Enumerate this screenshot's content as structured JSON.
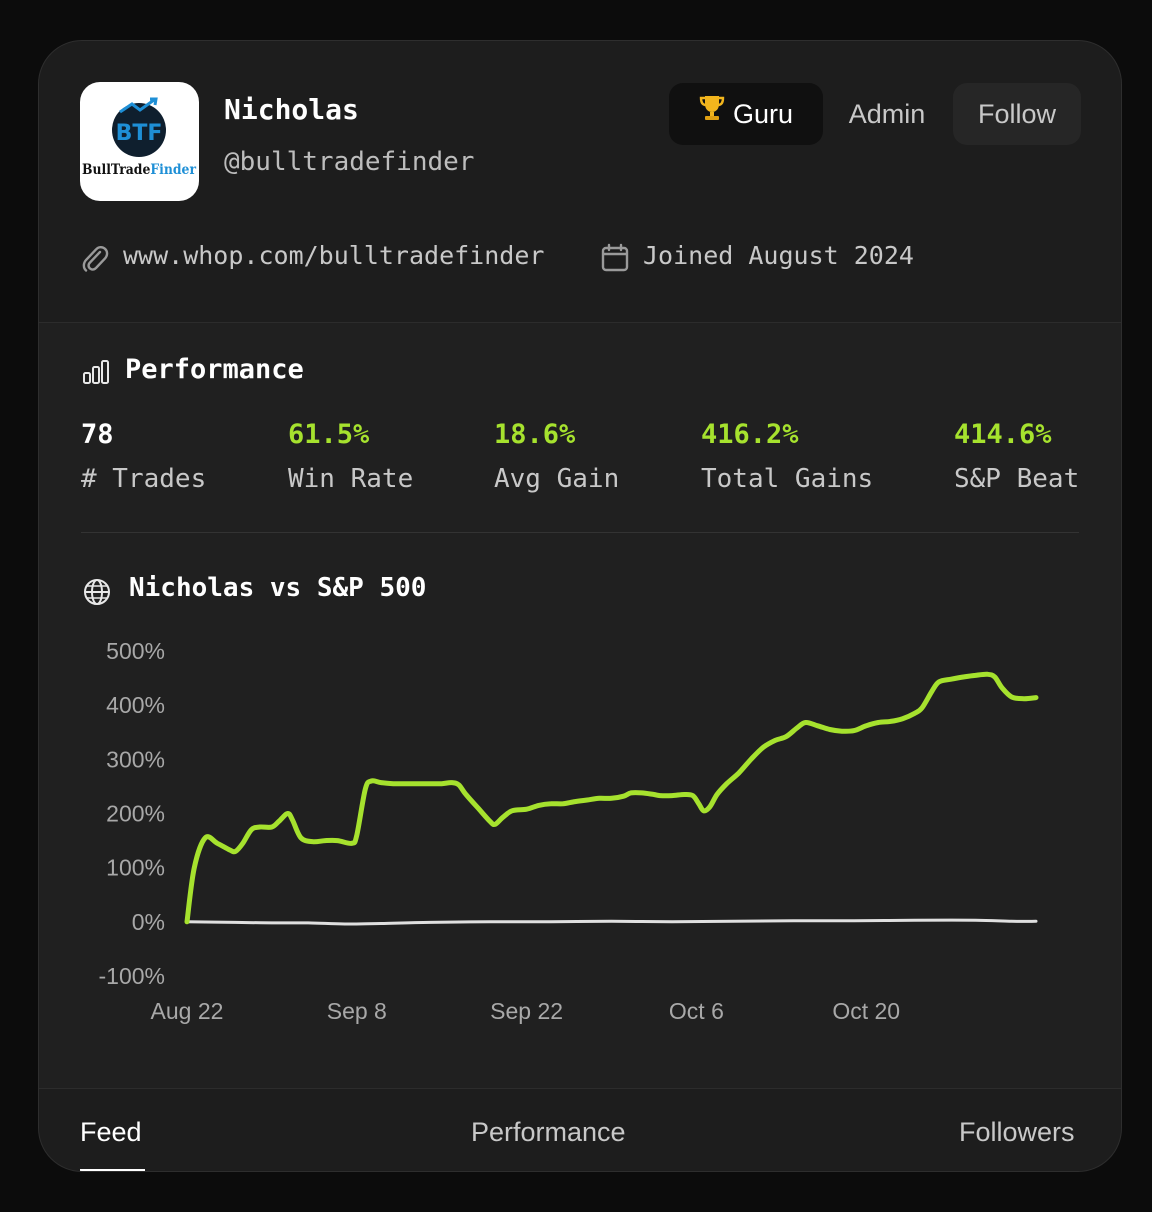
{
  "profile": {
    "name": "Nicholas",
    "handle": "@bulltradefinder",
    "logo_text_dark": "BullTrade",
    "logo_text_blue": "Finder",
    "logo_monogram": "BTF",
    "website": "www.whop.com/bulltradefinder",
    "joined": "Joined August 2024"
  },
  "header_buttons": {
    "guru": "Guru",
    "admin": "Admin",
    "follow": "Follow"
  },
  "performance": {
    "title": "Performance",
    "stats": [
      {
        "value": "78",
        "label": "# Trades",
        "highlight": false
      },
      {
        "value": "61.5%",
        "label": "Win Rate",
        "highlight": true
      },
      {
        "value": "18.6%",
        "label": "Avg Gain",
        "highlight": true
      },
      {
        "value": "416.2%",
        "label": "Total Gains",
        "highlight": true
      },
      {
        "value": "414.6%",
        "label": "S&P Beat",
        "highlight": true
      }
    ]
  },
  "chart_title": "Nicholas vs S&P 500",
  "chart_data": {
    "type": "line",
    "y_tick_labels": [
      "500%",
      "400%",
      "300%",
      "200%",
      "100%",
      "0%",
      "-100%"
    ],
    "x_tick_labels": [
      "Aug 22",
      "Sep 8",
      "Sep 22",
      "Oct 6",
      "Oct 20"
    ],
    "ylim": [
      -100,
      500
    ],
    "x_range_days": [
      0,
      70
    ],
    "x_ticks_days": [
      0,
      14,
      28,
      42,
      56
    ],
    "grid": false,
    "series": [
      {
        "color": "#a6e22e",
        "points": [
          [
            0,
            0
          ],
          [
            0.6,
            100
          ],
          [
            1.5,
            155
          ],
          [
            2.5,
            145
          ],
          [
            3.5,
            133
          ],
          [
            4,
            130
          ],
          [
            4.6,
            145
          ],
          [
            5.3,
            170
          ],
          [
            6,
            175
          ],
          [
            7,
            175
          ],
          [
            7.6,
            186
          ],
          [
            8.3,
            200
          ],
          [
            8.7,
            188
          ],
          [
            9.4,
            155
          ],
          [
            10.4,
            148
          ],
          [
            11.4,
            150
          ],
          [
            12.4,
            150
          ],
          [
            13.6,
            145
          ],
          [
            14,
            160
          ],
          [
            14.7,
            245
          ],
          [
            15.2,
            260
          ],
          [
            16,
            257
          ],
          [
            17,
            255
          ],
          [
            18,
            255
          ],
          [
            19,
            255
          ],
          [
            20,
            255
          ],
          [
            21,
            255
          ],
          [
            21.8,
            257
          ],
          [
            22.4,
            253
          ],
          [
            23,
            235
          ],
          [
            24,
            210
          ],
          [
            25,
            185
          ],
          [
            25.4,
            180
          ],
          [
            26,
            192
          ],
          [
            26.8,
            205
          ],
          [
            28,
            208
          ],
          [
            29,
            215
          ],
          [
            30,
            218
          ],
          [
            31,
            218
          ],
          [
            32,
            222
          ],
          [
            33,
            225
          ],
          [
            34,
            228
          ],
          [
            35,
            228
          ],
          [
            36,
            232
          ],
          [
            36.6,
            238
          ],
          [
            37.5,
            238
          ],
          [
            38.5,
            235
          ],
          [
            39,
            233
          ],
          [
            40,
            233
          ],
          [
            41,
            235
          ],
          [
            41.7,
            233
          ],
          [
            42.2,
            218
          ],
          [
            42.6,
            205
          ],
          [
            43.1,
            212
          ],
          [
            43.7,
            235
          ],
          [
            44.5,
            255
          ],
          [
            45.5,
            275
          ],
          [
            46.5,
            300
          ],
          [
            47.5,
            322
          ],
          [
            48.5,
            335
          ],
          [
            49.4,
            342
          ],
          [
            50.3,
            358
          ],
          [
            51,
            368
          ],
          [
            52,
            362
          ],
          [
            53,
            355
          ],
          [
            54,
            352
          ],
          [
            55,
            353
          ],
          [
            56,
            362
          ],
          [
            57,
            368
          ],
          [
            58,
            370
          ],
          [
            59,
            375
          ],
          [
            60,
            385
          ],
          [
            60.6,
            395
          ],
          [
            61.4,
            425
          ],
          [
            62,
            443
          ],
          [
            63,
            448
          ],
          [
            64,
            452
          ],
          [
            65,
            455
          ],
          [
            66,
            457
          ],
          [
            66.6,
            452
          ],
          [
            67.2,
            432
          ],
          [
            68,
            415
          ],
          [
            69,
            412
          ],
          [
            70,
            414
          ]
        ]
      },
      {
        "color": "#e0e0e0",
        "points": [
          [
            0,
            0
          ],
          [
            4,
            -1
          ],
          [
            7,
            -2
          ],
          [
            10,
            -2
          ],
          [
            13,
            -4
          ],
          [
            16,
            -3
          ],
          [
            20,
            -1
          ],
          [
            25,
            0
          ],
          [
            30,
            0
          ],
          [
            35,
            1
          ],
          [
            40,
            0
          ],
          [
            45,
            1
          ],
          [
            50,
            2
          ],
          [
            55,
            2
          ],
          [
            60,
            3
          ],
          [
            65,
            3
          ],
          [
            68,
            1
          ],
          [
            70,
            1
          ]
        ]
      }
    ]
  },
  "tabs": [
    {
      "label": "Feed",
      "active": true
    },
    {
      "label": "Performance",
      "active": false
    },
    {
      "label": "Followers",
      "active": false
    }
  ],
  "colors": {
    "accent_green": "#a6e22e",
    "card_bg": "#1d1d1d",
    "logo_blue": "#1e8fd6"
  }
}
